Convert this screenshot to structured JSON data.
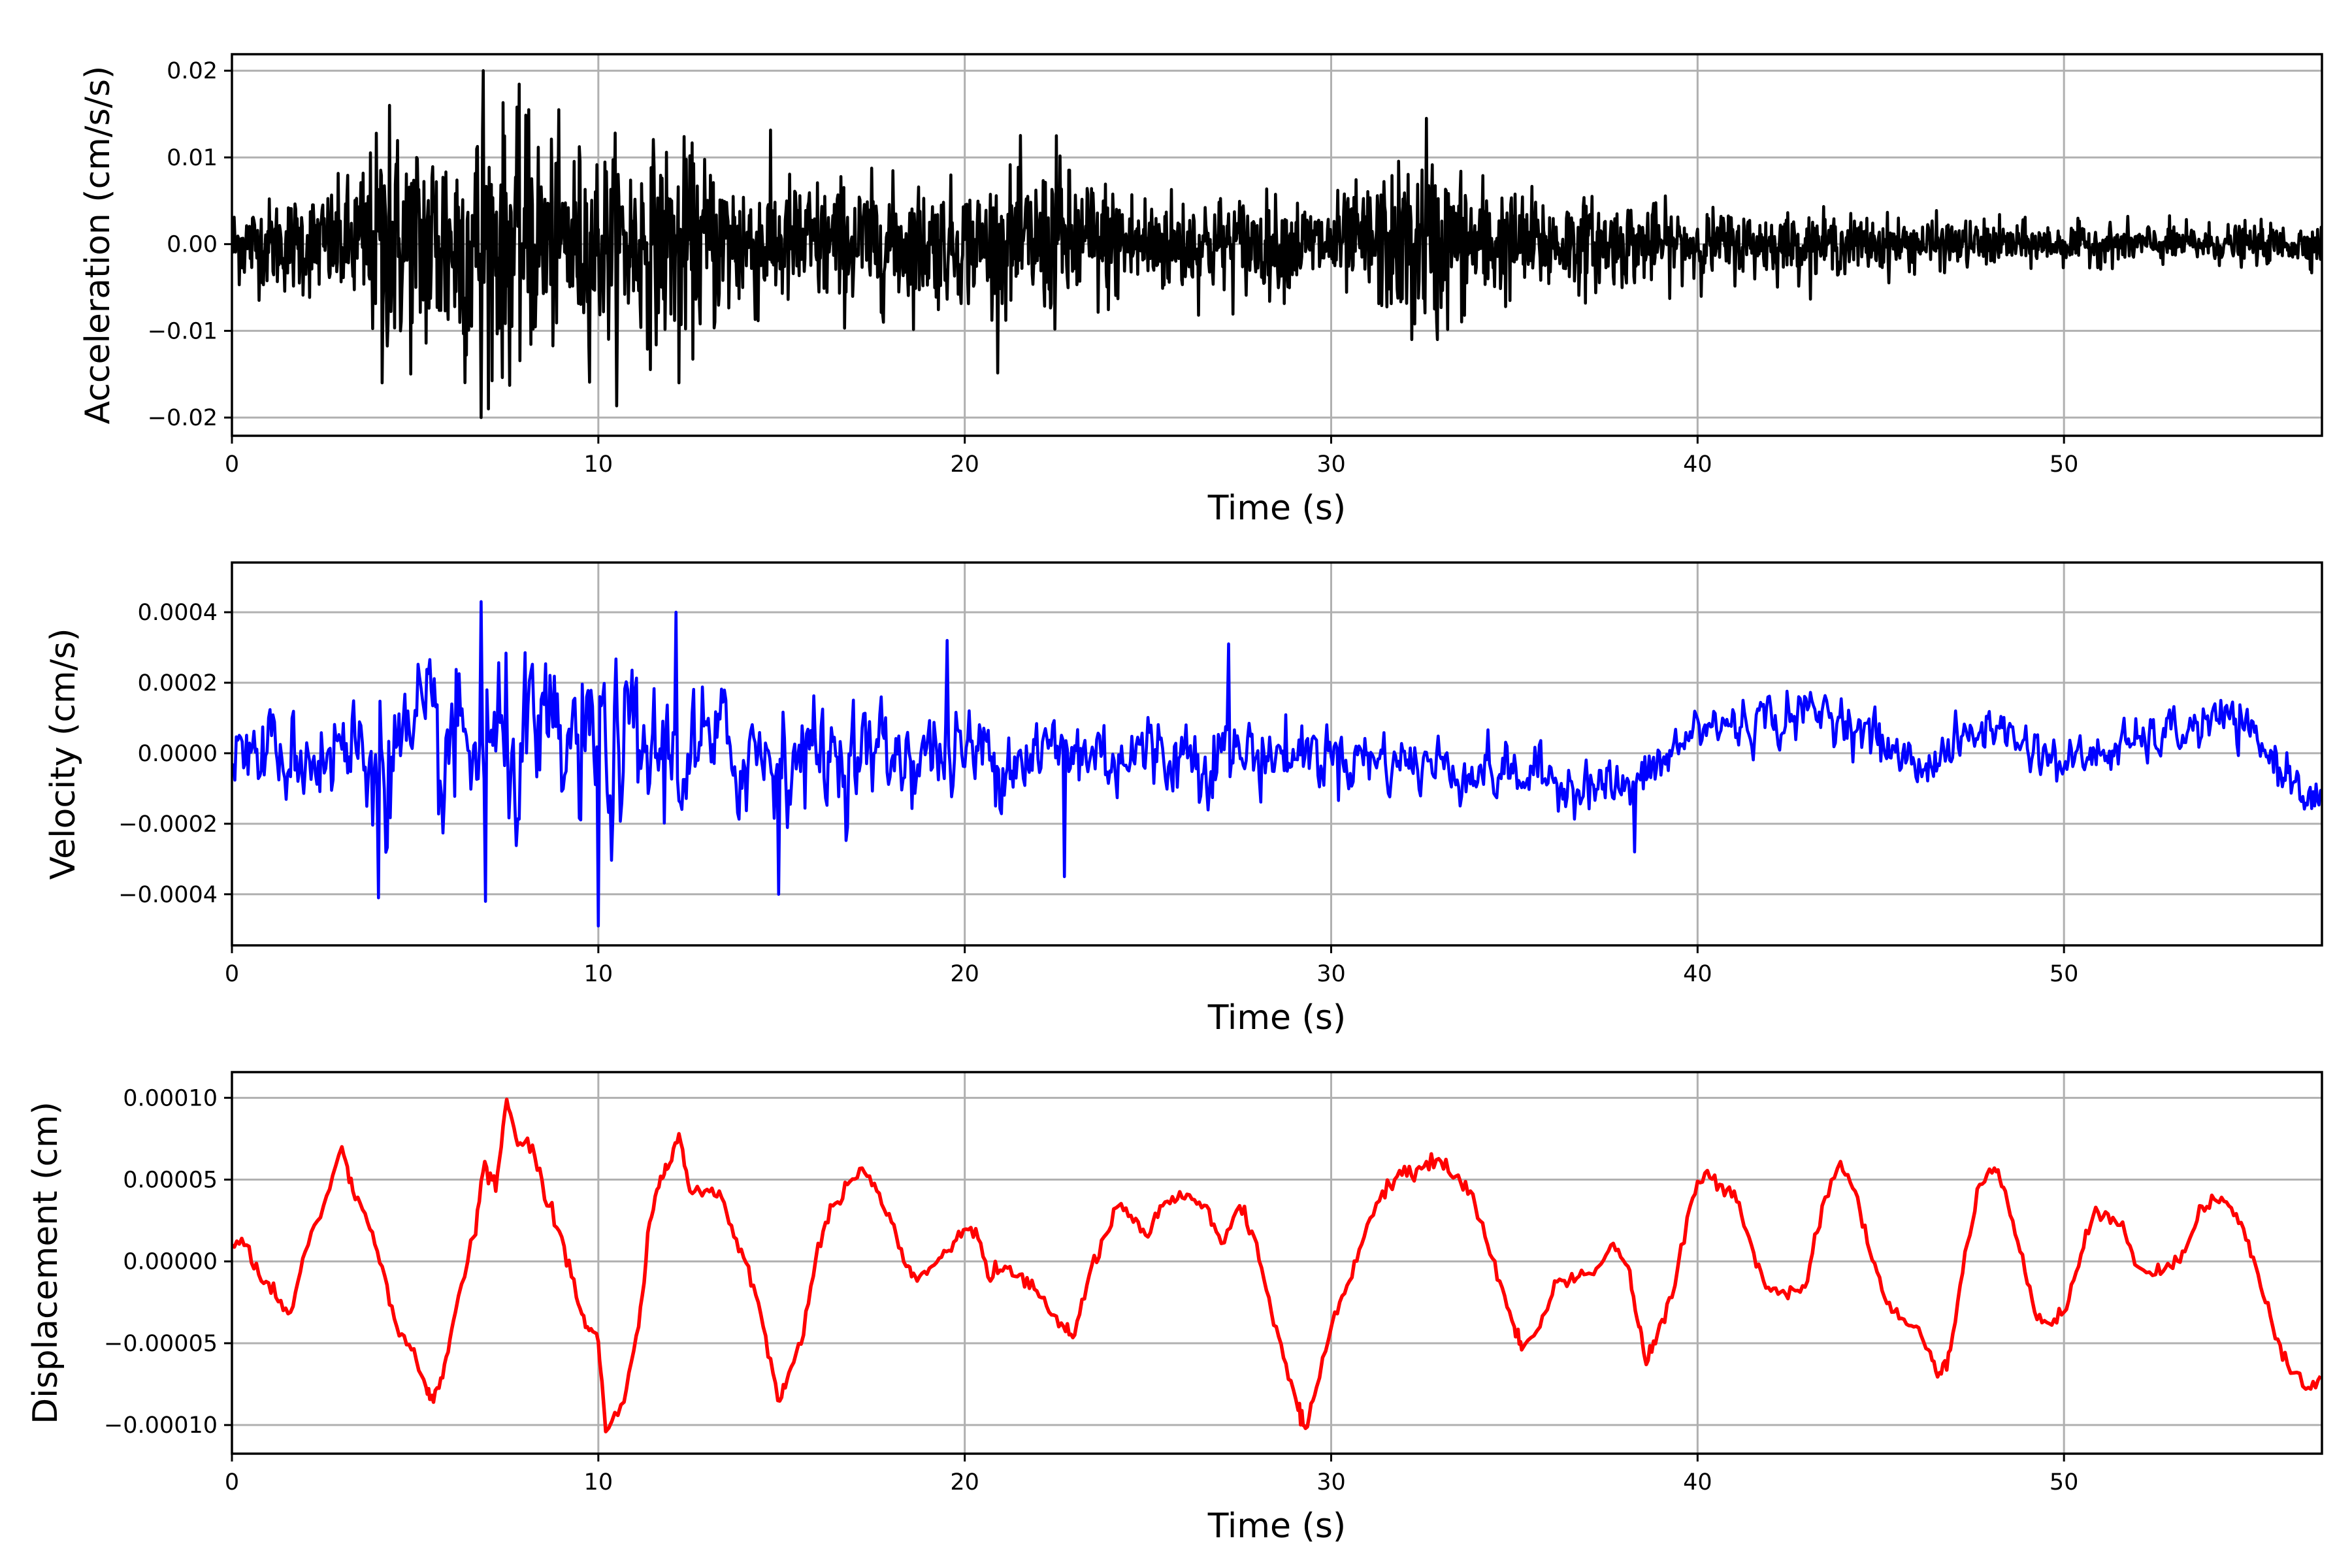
{
  "chart_data": [
    {
      "type": "line",
      "id": "acceleration",
      "xlabel": "Time (s)",
      "ylabel": "Acceleration (cm/s/s)",
      "xlim": [
        0,
        57.04
      ],
      "ylim": [
        -0.0221,
        0.0219
      ],
      "xticks": [
        0,
        10,
        20,
        30,
        40,
        50
      ],
      "xtick_labels": [
        "0",
        "10",
        "20",
        "30",
        "40",
        "50"
      ],
      "yticks": [
        -0.02,
        -0.01,
        0.0,
        0.01,
        0.02
      ],
      "ytick_labels": [
        "−0.02",
        "−0.01",
        "0.00",
        "0.01",
        "0.02"
      ],
      "grid": true,
      "color": "#000000",
      "envelope": {
        "t": [
          0,
          3,
          4,
          7,
          9,
          12,
          15,
          20,
          22.5,
          25,
          30,
          32.5,
          35,
          40,
          45,
          50,
          57
        ],
        "amplitude": [
          0.004,
          0.006,
          0.011,
          0.014,
          0.01,
          0.01,
          0.007,
          0.006,
          0.008,
          0.0055,
          0.0045,
          0.009,
          0.0055,
          0.0035,
          0.0028,
          0.002,
          0.002
        ]
      },
      "peaks": [
        [
          4.1,
          -0.016
        ],
        [
          4.3,
          0.016
        ],
        [
          6.85,
          0.02
        ],
        [
          6.8,
          -0.02
        ],
        [
          7.0,
          -0.019
        ],
        [
          8.1,
          0.0155
        ],
        [
          12.2,
          -0.016
        ],
        [
          22.5,
          0.0125
        ],
        [
          32.6,
          0.0145
        ],
        [
          32.2,
          -0.011
        ],
        [
          32.9,
          -0.011
        ]
      ]
    },
    {
      "type": "line",
      "id": "velocity",
      "xlabel": "Time (s)",
      "ylabel": "Velocity (cm/s)",
      "xlim": [
        0,
        57.04
      ],
      "ylim": [
        -0.000545,
        0.000541
      ],
      "xticks": [
        0,
        10,
        20,
        30,
        40,
        50
      ],
      "xtick_labels": [
        "0",
        "10",
        "20",
        "30",
        "40",
        "50"
      ],
      "yticks": [
        -0.0004,
        -0.0002,
        0.0,
        0.0002,
        0.0004
      ],
      "ytick_labels": [
        "−0.0004",
        "−0.0002",
        "0.0000",
        "0.0002",
        "0.0004"
      ],
      "grid": true,
      "color": "#0000ff",
      "envelope": {
        "t": [
          0,
          4,
          7,
          10,
          12,
          15,
          20,
          27,
          30,
          40,
          50,
          57
        ],
        "amplitude": [
          0.0001,
          0.00022,
          0.00026,
          0.00026,
          0.00022,
          0.00017,
          0.00014,
          0.00013,
          0.0001,
          8e-05,
          7e-05,
          7e-05
        ]
      },
      "trend": {
        "t": [
          0,
          10,
          20,
          30,
          38.3,
          40,
          43.7,
          46,
          48,
          50,
          54.5,
          57
        ],
        "value": [
          0,
          0,
          0,
          0,
          -0.0001,
          7e-05,
          0.00012,
          -4e-05,
          8e-05,
          -3e-05,
          0.0001,
          -0.00014
        ]
      },
      "peaks": [
        [
          6.8,
          0.00043
        ],
        [
          10.0,
          -0.00049
        ],
        [
          12.1,
          0.0004
        ],
        [
          4.0,
          -0.00041
        ],
        [
          6.9,
          -0.00042
        ],
        [
          14.9,
          -0.0004
        ],
        [
          27.2,
          0.00031
        ],
        [
          38.3,
          -0.00028
        ],
        [
          19.5,
          0.00032
        ],
        [
          22.7,
          -0.00035
        ]
      ]
    },
    {
      "type": "line",
      "id": "displacement",
      "xlabel": "Time (s)",
      "ylabel": "Displacement (cm)",
      "xlim": [
        0,
        57.04
      ],
      "ylim": [
        -0.0001175,
        0.0001157
      ],
      "xticks": [
        0,
        10,
        20,
        30,
        40,
        50
      ],
      "xtick_labels": [
        "0",
        "10",
        "20",
        "30",
        "40",
        "50"
      ],
      "yticks": [
        -0.0001,
        -5e-05,
        0.0,
        5e-05,
        0.0001
      ],
      "ytick_labels": [
        "−0.00010",
        "−0.00005",
        "0.00000",
        "0.00005",
        "0.00010"
      ],
      "grid": true,
      "color": "#ff0000",
      "value_unit_scale": 1e-05,
      "t": [
        0,
        0.4,
        0.8,
        1.2,
        1.6,
        2.0,
        2.5,
        3.0,
        3.3,
        3.7,
        4.1,
        4.5,
        4.9,
        5.3,
        5.5,
        5.8,
        6.1,
        6.6,
        6.9,
        7.2,
        7.5,
        7.8,
        8.2,
        8.6,
        9.0,
        9.4,
        9.7,
        10.0,
        10.2,
        10.7,
        11.1,
        11.4,
        11.7,
        11.9,
        12.2,
        12.5,
        12.9,
        13.3,
        13.7,
        14.1,
        14.5,
        14.9,
        15.2,
        15.6,
        16.0,
        16.4,
        16.8,
        17.2,
        17.6,
        18.0,
        18.4,
        18.7,
        19.1,
        19.5,
        19.9,
        20.3,
        20.7,
        21.1,
        21.5,
        21.9,
        22.3,
        22.7,
        23.0,
        23.4,
        23.8,
        24.2,
        24.6,
        25.0,
        25.4,
        25.8,
        26.2,
        26.6,
        27.0,
        27.5,
        27.9,
        28.3,
        28.7,
        29.1,
        29.3,
        29.6,
        30.1,
        30.5,
        30.9,
        31.4,
        31.8,
        32.2,
        32.6,
        33.0,
        33.4,
        33.8,
        34.2,
        34.6,
        35.0,
        35.2,
        35.7,
        36.1,
        36.5,
        36.9,
        37.3,
        37.7,
        38.1,
        38.4,
        38.6,
        38.9,
        39.3,
        39.8,
        40.2,
        40.6,
        41.0,
        41.4,
        41.8,
        42.2,
        42.6,
        43.0,
        43.4,
        43.9,
        44.3,
        44.7,
        45.1,
        45.5,
        45.9,
        46.3,
        46.6,
        46.9,
        47.3,
        47.7,
        48.1,
        48.4,
        48.8,
        49.2,
        49.6,
        50.0,
        50.4,
        50.8,
        51.2,
        51.6,
        52.0,
        52.5,
        52.9,
        53.3,
        53.7,
        54.1,
        54.5,
        54.9,
        55.3,
        55.7,
        56.1,
        56.6,
        57.0
      ],
      "values_x1e-5": [
        1.0,
        1.0,
        -1.2,
        -2.2,
        -3.1,
        0.6,
        3.4,
        7.0,
        4.3,
        2.4,
        -0.3,
        -4.0,
        -5.4,
        -7.7,
        -8.6,
        -6.3,
        -3.1,
        1.5,
        6.1,
        4.3,
        9.9,
        7.1,
        7.1,
        3.4,
        1.5,
        -2.2,
        -4.0,
        -4.9,
        -10.4,
        -8.6,
        -4.0,
        2.4,
        5.2,
        5.7,
        7.8,
        4.3,
        4.3,
        4.3,
        1.5,
        -0.3,
        -4.0,
        -8.5,
        -6.8,
        -4.5,
        1.1,
        3.4,
        4.7,
        5.7,
        4.3,
        2.4,
        -0.3,
        -1.2,
        -0.3,
        0.6,
        1.5,
        2.0,
        -1.2,
        -0.3,
        -0.8,
        -1.7,
        -3.1,
        -4.0,
        -4.5,
        -0.8,
        1.5,
        3.4,
        2.4,
        1.5,
        3.4,
        3.8,
        3.8,
        3.4,
        1.1,
        3.4,
        1.5,
        -2.2,
        -5.9,
        -9.1,
        -10.2,
        -7.7,
        -3.1,
        -1.2,
        1.5,
        4.3,
        5.2,
        5.2,
        6.1,
        6.1,
        5.2,
        4.3,
        1.5,
        -1.2,
        -4.0,
        -5.4,
        -4.0,
        -1.2,
        -1.2,
        -0.8,
        -0.3,
        1.1,
        -0.3,
        -4.0,
        -6.3,
        -4.5,
        -2.2,
        3.4,
        5.4,
        4.7,
        4.3,
        1.5,
        -1.2,
        -2.0,
        -1.7,
        -1.2,
        3.4,
        6.1,
        4.3,
        0.6,
        -2.2,
        -3.5,
        -4.0,
        -5.4,
        -6.8,
        -5.4,
        0.6,
        4.7,
        5.7,
        4.3,
        0.6,
        -3.1,
        -3.8,
        -3.1,
        -0.3,
        2.8,
        2.9,
        2.4,
        -0.3,
        -0.8,
        -0.3,
        0.6,
        3.4,
        3.8,
        3.4,
        2.0,
        -0.8,
        -4.0,
        -6.3,
        -7.8,
        -7.0
      ]
    }
  ]
}
